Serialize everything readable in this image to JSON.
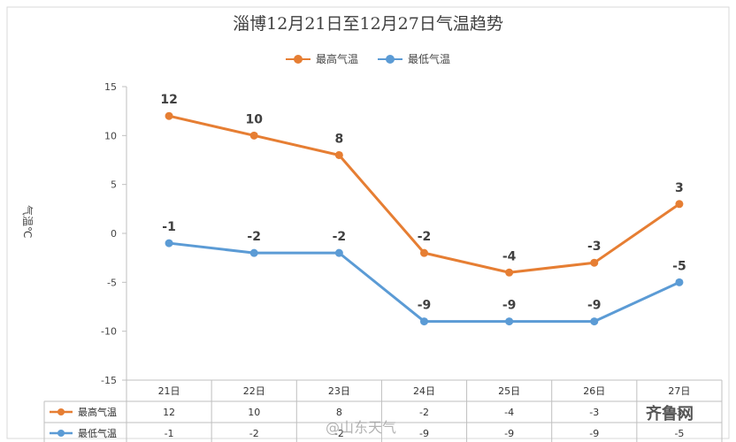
{
  "chart_data": {
    "type": "line",
    "title": "淄博12月21日至12月27日气温趋势",
    "ylabel": "气温℃",
    "categories": [
      "21日",
      "22日",
      "23日",
      "24日",
      "25日",
      "26日",
      "27日"
    ],
    "ylim": [
      -15,
      15
    ],
    "yticks": [
      15,
      10,
      5,
      0,
      -5,
      -10,
      -15
    ],
    "legend_position": "top-center",
    "grid": false,
    "series": [
      {
        "name": "最高气温",
        "color": "#E67E33",
        "values": [
          12,
          10,
          8,
          -2,
          -4,
          -3,
          3
        ]
      },
      {
        "name": "最低气温",
        "color": "#5B9BD5",
        "values": [
          -1,
          -2,
          -2,
          -9,
          -9,
          -9,
          -5
        ]
      }
    ],
    "table": true
  },
  "watermark": "@山东天气",
  "brand": "齐鲁网"
}
